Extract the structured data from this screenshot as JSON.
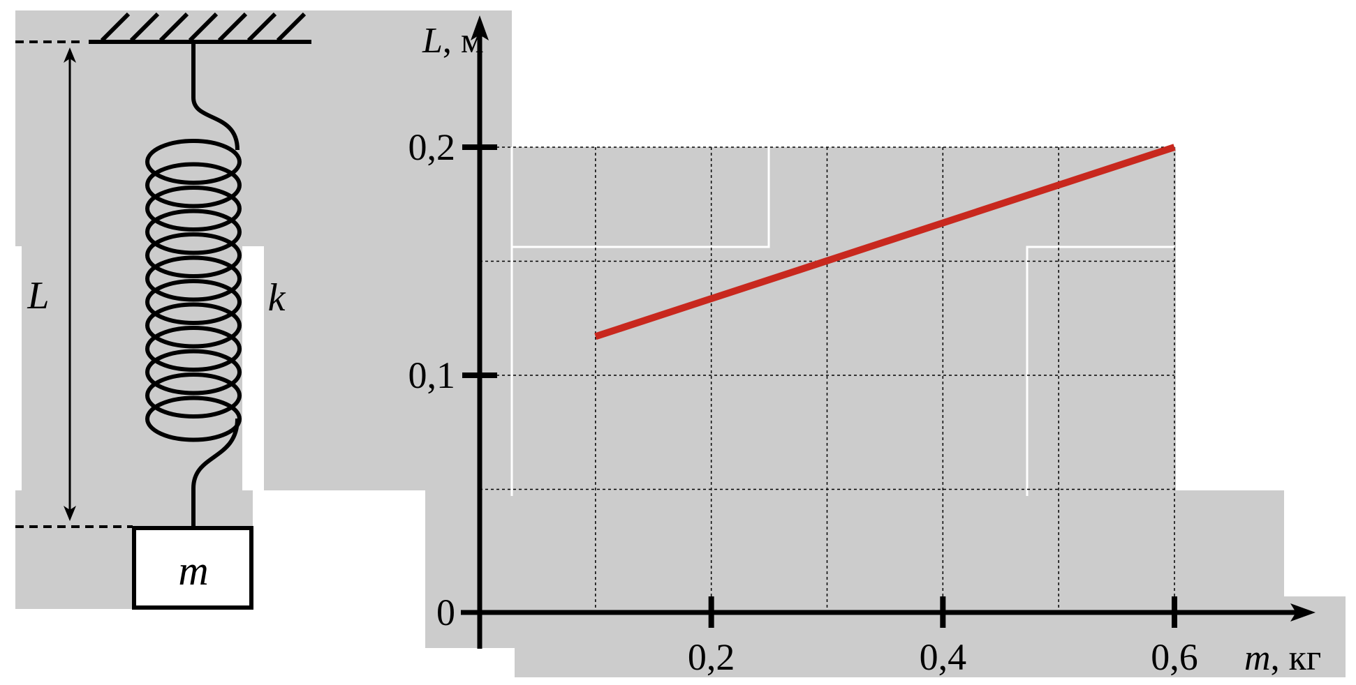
{
  "diagram": {
    "length_label": "L",
    "spring_label": "k",
    "mass_label": "m"
  },
  "chart_data": {
    "type": "line",
    "title": "",
    "xlabel": {
      "var": "m",
      "unit": ", кг"
    },
    "ylabel": {
      "var": "L",
      "unit": ", м"
    },
    "xlim": [
      0,
      0.6
    ],
    "ylim": [
      0,
      0.2
    ],
    "x_ticks": [
      {
        "value": 0.2,
        "label": "0,2"
      },
      {
        "value": 0.4,
        "label": "0,4"
      },
      {
        "value": 0.6,
        "label": "0,6"
      }
    ],
    "y_ticks": [
      {
        "value": 0,
        "label": "0"
      },
      {
        "value": 0.1,
        "label": "0,1"
      },
      {
        "value": 0.2,
        "label": "0,2"
      }
    ],
    "grid": true,
    "grid_x": [
      0.1,
      0.2,
      0.3,
      0.4,
      0.5,
      0.6
    ],
    "grid_y": [
      0.05,
      0.1,
      0.15,
      0.2
    ],
    "series": [
      {
        "x": [
          0.1,
          0.6
        ],
        "y": [
          0.117,
          0.2
        ],
        "color": "#c8281e"
      }
    ]
  }
}
